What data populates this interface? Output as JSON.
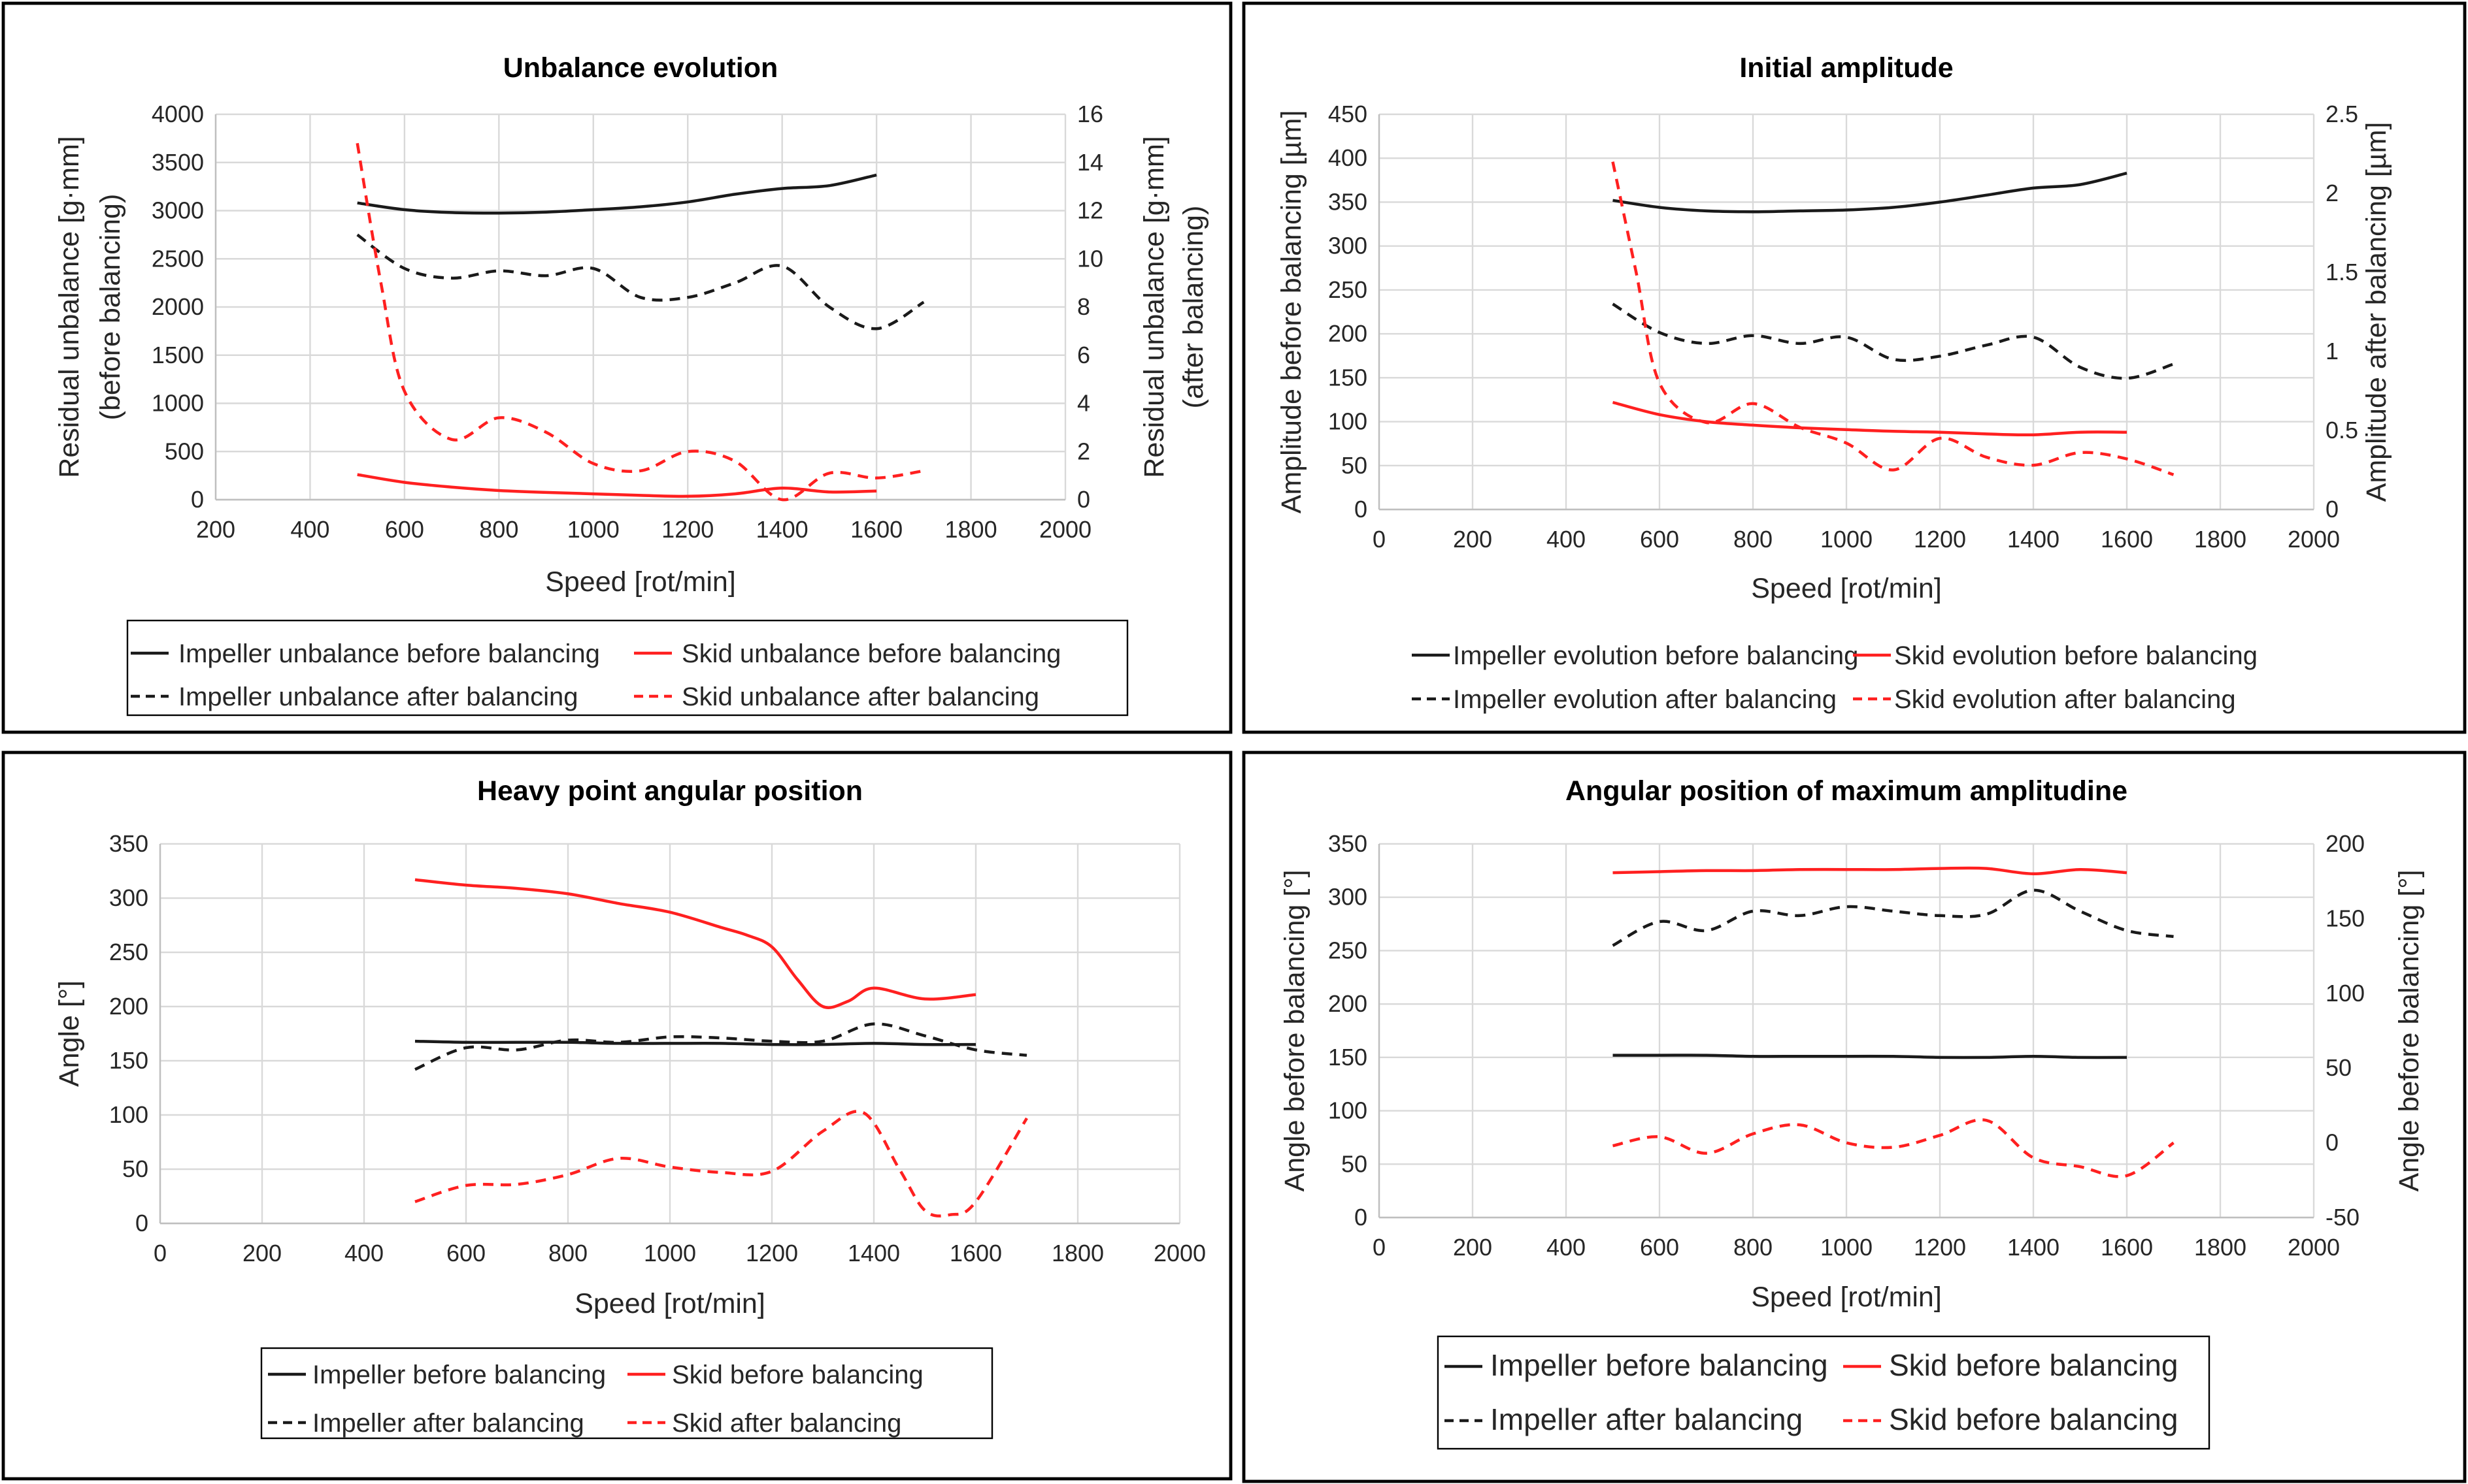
{
  "colors": {
    "black": "#1a1a1a",
    "red": "#ff2020",
    "grid": "#d9d9d9"
  },
  "chart_data": [
    {
      "type": "line",
      "title": "Unbalance evolution",
      "xlabel": "Speed [rot/min]",
      "ylabel": "Residual unbalance [g·mm]",
      "ylabel2": "(before balancing)",
      "y2label": "Residual unbalance [g·mm]",
      "y2label2": "(after balancing)",
      "xlim": [
        200,
        2000
      ],
      "xticks": [
        200,
        400,
        600,
        800,
        1000,
        1200,
        1400,
        1600,
        1800,
        2000
      ],
      "ylim": [
        0,
        4000
      ],
      "yticks": [
        0,
        500,
        1000,
        1500,
        2000,
        2500,
        3000,
        3500,
        4000
      ],
      "y2lim": [
        0,
        16
      ],
      "y2ticks": [
        0,
        2,
        4,
        6,
        8,
        10,
        12,
        14,
        16
      ],
      "legend": [
        "Impeller unbalance before balancing",
        "Skid unbalance before balancing",
        "Impeller unbalance after balancing",
        "Skid unbalance after balancing"
      ],
      "series": [
        {
          "name": "Impeller unbalance before balancing",
          "axis": "left",
          "color": "black",
          "dash": false,
          "x": [
            500,
            600,
            700,
            800,
            900,
            1000,
            1100,
            1200,
            1300,
            1400,
            1500,
            1600
          ],
          "values": [
            3080,
            3010,
            2980,
            2975,
            2985,
            3010,
            3040,
            3090,
            3170,
            3230,
            3260,
            3370
          ]
        },
        {
          "name": "Skid unbalance before balancing",
          "axis": "left",
          "color": "red",
          "dash": false,
          "x": [
            500,
            600,
            700,
            800,
            900,
            1000,
            1100,
            1200,
            1300,
            1400,
            1500,
            1600
          ],
          "values": [
            260,
            180,
            130,
            95,
            75,
            60,
            45,
            35,
            60,
            120,
            80,
            90
          ]
        },
        {
          "name": "Impeller unbalance after balancing",
          "axis": "right",
          "color": "black",
          "dash": true,
          "x": [
            500,
            600,
            700,
            800,
            900,
            1000,
            1100,
            1200,
            1300,
            1400,
            1500,
            1600,
            1700
          ],
          "values": [
            11.0,
            9.6,
            9.2,
            9.5,
            9.3,
            9.6,
            8.4,
            8.4,
            9.0,
            9.7,
            8.0,
            7.1,
            8.2
          ]
        },
        {
          "name": "Skid unbalance after balancing",
          "axis": "right",
          "color": "red",
          "dash": true,
          "x": [
            500,
            550,
            600,
            700,
            800,
            900,
            1000,
            1100,
            1200,
            1300,
            1400,
            1500,
            1600,
            1700
          ],
          "values": [
            14.8,
            9.0,
            4.5,
            2.5,
            3.4,
            2.8,
            1.5,
            1.2,
            2.0,
            1.6,
            0.0,
            1.1,
            0.9,
            1.2
          ]
        }
      ]
    },
    {
      "type": "line",
      "title": "Initial amplitude",
      "xlabel": "Speed [rot/min]",
      "ylabel": "Amplitude before balancing  [µm]",
      "y2label": "Amplitude after balancing  [µm]",
      "xlim": [
        0,
        2000
      ],
      "xticks": [
        0,
        200,
        400,
        600,
        800,
        1000,
        1200,
        1400,
        1600,
        1800,
        2000
      ],
      "ylim": [
        0,
        450
      ],
      "yticks": [
        0,
        50,
        100,
        150,
        200,
        250,
        300,
        350,
        400,
        450
      ],
      "y2lim": [
        0,
        2.5
      ],
      "y2ticks": [
        0,
        0.5,
        1,
        1.5,
        2,
        2.5
      ],
      "legend": [
        "Impeller evolution before balancing",
        "Skid evolution before balancing",
        "Impeller evolution after balancing",
        "Skid evolution after balancing"
      ],
      "series": [
        {
          "name": "Impeller evolution before balancing",
          "axis": "left",
          "color": "black",
          "dash": false,
          "x": [
            500,
            600,
            700,
            800,
            900,
            1000,
            1100,
            1200,
            1300,
            1400,
            1500,
            1600
          ],
          "values": [
            352,
            344,
            340,
            339,
            340,
            341,
            344,
            350,
            358,
            366,
            370,
            383
          ]
        },
        {
          "name": "Skid evolution before balancing",
          "axis": "left",
          "color": "red",
          "dash": false,
          "x": [
            500,
            600,
            700,
            800,
            900,
            1000,
            1100,
            1200,
            1300,
            1400,
            1500,
            1600
          ],
          "values": [
            122,
            108,
            100,
            96,
            93,
            91,
            89,
            88,
            86,
            85,
            88,
            88
          ]
        },
        {
          "name": "Impeller evolution after balancing",
          "axis": "right",
          "color": "black",
          "dash": true,
          "x": [
            500,
            600,
            700,
            800,
            900,
            1000,
            1100,
            1200,
            1300,
            1400,
            1500,
            1600,
            1700
          ],
          "values": [
            1.3,
            1.12,
            1.05,
            1.1,
            1.05,
            1.09,
            0.95,
            0.97,
            1.04,
            1.09,
            0.9,
            0.83,
            0.92
          ]
        },
        {
          "name": "Skid evolution after balancing",
          "axis": "right",
          "color": "red",
          "dash": true,
          "x": [
            500,
            550,
            600,
            700,
            800,
            900,
            1000,
            1100,
            1200,
            1300,
            1400,
            1500,
            1600,
            1700
          ],
          "values": [
            2.2,
            1.5,
            0.8,
            0.55,
            0.67,
            0.52,
            0.42,
            0.25,
            0.45,
            0.33,
            0.28,
            0.36,
            0.32,
            0.22
          ]
        }
      ]
    },
    {
      "type": "line",
      "title": "Heavy point angular position",
      "xlabel": "Speed [rot/min]",
      "ylabel": "Angle [°]",
      "xlim": [
        0,
        2000
      ],
      "xticks": [
        0,
        200,
        400,
        600,
        800,
        1000,
        1200,
        1400,
        1600,
        1800,
        2000
      ],
      "ylim": [
        0,
        350
      ],
      "yticks": [
        0,
        50,
        100,
        150,
        200,
        250,
        300,
        350
      ],
      "legend": [
        "Impeller before balancing",
        "Skid before balancing",
        "Impeller after balancing",
        "Skid after balancing"
      ],
      "series": [
        {
          "name": "Impeller before balancing",
          "axis": "left",
          "color": "black",
          "dash": false,
          "x": [
            500,
            600,
            700,
            800,
            900,
            1000,
            1100,
            1200,
            1300,
            1400,
            1500,
            1600
          ],
          "values": [
            168,
            167,
            167,
            167,
            166,
            166,
            166,
            165,
            165,
            166,
            165,
            165
          ]
        },
        {
          "name": "Skid before balancing",
          "axis": "left",
          "color": "red",
          "dash": false,
          "x": [
            500,
            600,
            700,
            800,
            900,
            1000,
            1100,
            1150,
            1200,
            1250,
            1300,
            1350,
            1400,
            1500,
            1600
          ],
          "values": [
            317,
            312,
            309,
            304,
            295,
            287,
            273,
            266,
            255,
            225,
            200,
            205,
            217,
            207,
            211
          ]
        },
        {
          "name": "Impeller after balancing",
          "axis": "left",
          "color": "black",
          "dash": true,
          "x": [
            500,
            600,
            700,
            800,
            900,
            1000,
            1100,
            1200,
            1300,
            1400,
            1500,
            1600,
            1700
          ],
          "values": [
            142,
            162,
            160,
            169,
            167,
            172,
            171,
            168,
            168,
            184,
            173,
            160,
            155
          ]
        },
        {
          "name": "Skid after balancing",
          "axis": "left",
          "color": "red",
          "dash": true,
          "x": [
            500,
            600,
            700,
            800,
            900,
            1000,
            1100,
            1200,
            1300,
            1380,
            1450,
            1500,
            1550,
            1600,
            1700
          ],
          "values": [
            20,
            35,
            36,
            45,
            60,
            52,
            47,
            48,
            85,
            102,
            50,
            12,
            8,
            20,
            97
          ]
        }
      ]
    },
    {
      "type": "line",
      "title": "Angular position of maximum amplitudine",
      "xlabel": "Speed [rot/min]",
      "ylabel": "Angle before balancing [°]",
      "y2label": "Angle before balancing [°]",
      "xlim": [
        0,
        2000
      ],
      "xticks": [
        0,
        200,
        400,
        600,
        800,
        1000,
        1200,
        1400,
        1600,
        1800,
        2000
      ],
      "ylim": [
        0,
        350
      ],
      "yticks": [
        0,
        50,
        100,
        150,
        200,
        250,
        300,
        350
      ],
      "y2lim": [
        -50,
        200
      ],
      "y2ticks": [
        -50,
        0,
        50,
        100,
        150,
        200
      ],
      "legend": [
        "Impeller before balancing",
        "Skid before balancing",
        "Impeller after balancing",
        "Skid before balancing"
      ],
      "series": [
        {
          "name": "Impeller before balancing",
          "axis": "left",
          "color": "black",
          "dash": false,
          "x": [
            500,
            600,
            700,
            800,
            900,
            1000,
            1100,
            1200,
            1300,
            1400,
            1500,
            1600
          ],
          "values": [
            152,
            152,
            152,
            151,
            151,
            151,
            151,
            150,
            150,
            151,
            150,
            150
          ]
        },
        {
          "name": "Skid before balancing",
          "axis": "left",
          "color": "red",
          "dash": false,
          "x": [
            500,
            600,
            700,
            800,
            900,
            1000,
            1100,
            1200,
            1300,
            1400,
            1500,
            1600
          ],
          "values": [
            323,
            324,
            325,
            325,
            326,
            326,
            326,
            327,
            327,
            322,
            326,
            323
          ]
        },
        {
          "name": "Impeller after balancing",
          "axis": "right",
          "color": "black",
          "dash": true,
          "x": [
            500,
            600,
            700,
            800,
            900,
            1000,
            1100,
            1200,
            1300,
            1400,
            1500,
            1600,
            1700
          ],
          "values": [
            132,
            148,
            142,
            155,
            152,
            158,
            155,
            152,
            153,
            169,
            155,
            142,
            138
          ]
        },
        {
          "name": "Skid before balancing",
          "axis": "right",
          "color": "red",
          "dash": true,
          "x": [
            500,
            600,
            700,
            800,
            900,
            1000,
            1100,
            1200,
            1300,
            1400,
            1500,
            1600,
            1700
          ],
          "values": [
            -2,
            4,
            -7,
            6,
            12,
            0,
            -3,
            5,
            15,
            -10,
            -16,
            -22,
            0
          ]
        }
      ]
    }
  ]
}
